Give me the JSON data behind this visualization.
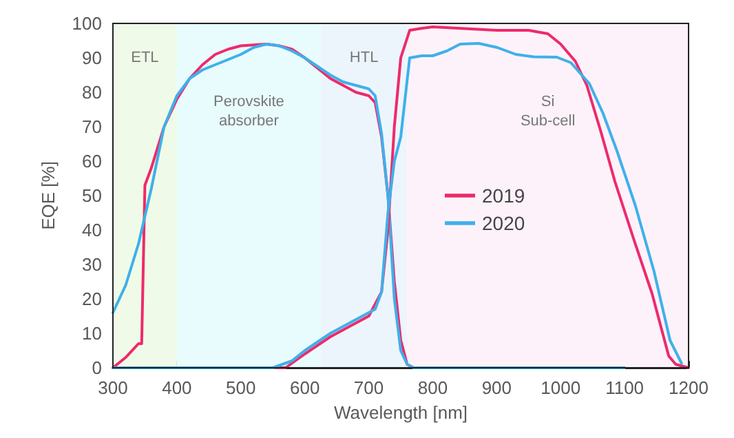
{
  "chart_data": {
    "type": "line",
    "xlabel": "Wavelength [nm]",
    "ylabel": "EQE [%]",
    "xlim": [
      300,
      1200
    ],
    "xticks": [
      300,
      400,
      500,
      600,
      700,
      800,
      900,
      1000,
      1100,
      1200
    ],
    "ylim": [
      0,
      100
    ],
    "yticks": [
      0,
      10,
      20,
      30,
      40,
      50,
      60,
      70,
      80,
      90,
      100
    ],
    "grid": false,
    "legend": "right",
    "marker": "none",
    "line_style": "solid",
    "bands": [
      {
        "axis": "x",
        "from": 300,
        "to": 400,
        "label": "ETL",
        "color": "#effbe8"
      },
      {
        "axis": "x",
        "from": 400,
        "to": 625,
        "label": "Perovskite\nabsorber",
        "color": "#e8fbfd"
      },
      {
        "axis": "x",
        "from": 625,
        "to": 760,
        "label": "HTL",
        "color": "#edf5fc"
      },
      {
        "axis": "x",
        "from": 760,
        "to": 1200,
        "label": "Si\nSub-cell",
        "color": "#fdf2fa"
      }
    ],
    "series": [
      {
        "name": "2019",
        "color": "#ee2a6b",
        "x": [
          300,
          320,
          340,
          345,
          350,
          360,
          380,
          400,
          420,
          440,
          460,
          480,
          500,
          540,
          560,
          580,
          600,
          620,
          640,
          660,
          680,
          700,
          710,
          720,
          730,
          740,
          750,
          760,
          770,
          940
        ],
        "values": [
          0,
          3,
          7,
          7,
          53,
          58,
          70,
          78,
          84,
          88,
          91,
          92.5,
          93.5,
          94,
          93.5,
          92.5,
          90,
          87,
          84,
          82,
          80,
          79,
          77,
          67,
          50,
          25,
          8,
          1,
          0,
          0
        ]
      },
      {
        "name": "2020",
        "color": "#3fb0ea",
        "x": [
          300,
          320,
          340,
          360,
          380,
          400,
          420,
          440,
          460,
          480,
          500,
          520,
          540,
          560,
          580,
          600,
          620,
          640,
          660,
          680,
          700,
          710,
          720,
          730,
          740,
          750,
          760,
          770,
          1100
        ],
        "values": [
          16,
          24,
          36,
          52,
          70,
          79,
          84,
          86.5,
          88,
          89.5,
          91,
          93,
          94,
          93.5,
          92,
          90,
          87.5,
          85,
          83,
          82,
          81,
          79,
          68,
          50,
          20,
          5,
          1,
          0,
          0
        ]
      },
      {
        "color": "#ee2a6b",
        "x": [
          300,
          570,
          600,
          640,
          680,
          700,
          720,
          730,
          740,
          750,
          764,
          780,
          800,
          850,
          900,
          950,
          980,
          1000,
          1023,
          1041,
          1063,
          1085,
          1114,
          1143,
          1169,
          1180,
          1200
        ],
        "values": [
          0,
          0,
          4,
          9,
          13,
          15,
          22,
          40,
          70,
          90,
          98,
          98.5,
          99,
          98.5,
          98,
          98,
          97,
          94,
          89,
          82,
          68.5,
          54,
          37.5,
          21.5,
          3.4,
          1,
          0
        ]
      },
      {
        "color": "#3fb0ea",
        "x": [
          300,
          550,
          580,
          600,
          640,
          680,
          700,
          710,
          720,
          730,
          740,
          750,
          764,
          783,
          800,
          822,
          843,
          872,
          901,
          930,
          958,
          994,
          1016,
          1045,
          1066,
          1088,
          1117,
          1146,
          1171,
          1189
        ],
        "values": [
          0,
          0,
          2,
          5,
          10,
          14,
          16,
          17,
          22,
          45,
          60,
          67,
          90,
          90.6,
          90.6,
          92,
          94,
          94.2,
          93,
          91,
          90.3,
          90.2,
          88.6,
          82.5,
          74,
          63,
          47,
          28,
          8,
          1.3
        ]
      }
    ]
  }
}
